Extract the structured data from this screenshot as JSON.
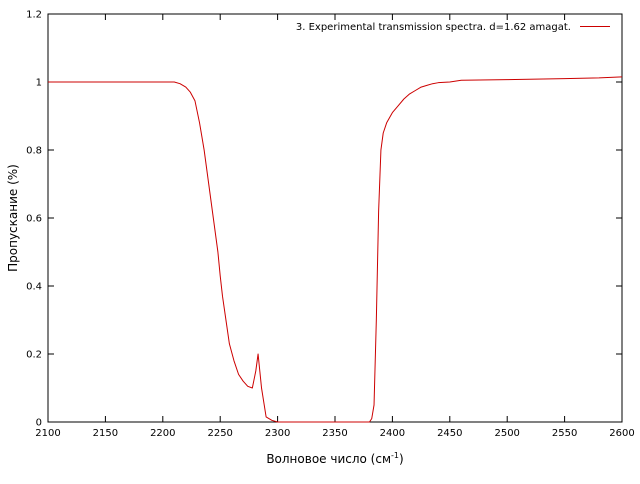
{
  "chart_data": {
    "type": "line",
    "title": "",
    "xlabel": "Волновое число (см",
    "xlabel_sup": "-1",
    "xlabel_suffix": ")",
    "ylabel": "Пропускание (%)",
    "xlim": [
      2100,
      2600
    ],
    "ylim": [
      0,
      1.2
    ],
    "xticks": [
      "2100",
      "2150",
      "2200",
      "2250",
      "2300",
      "2350",
      "2400",
      "2450",
      "2500",
      "2550",
      "2600"
    ],
    "yticks": [
      "0",
      "0.2",
      "0.4",
      "0.6",
      "0.8",
      "1",
      "1.2"
    ],
    "grid": false,
    "legend": "top-right",
    "line_color": "#cc0000",
    "series": [
      {
        "name": "3. Experimental transmission spectra. d=1.62 amagat.",
        "x": [
          2100,
          2150,
          2200,
          2210,
          2215,
          2220,
          2224,
          2228,
          2232,
          2236,
          2240,
          2244,
          2248,
          2250,
          2252,
          2255,
          2258,
          2262,
          2266,
          2270,
          2274,
          2278,
          2281,
          2283,
          2286,
          2290,
          2295,
          2300,
          2340,
          2380,
          2382,
          2384,
          2386,
          2388,
          2390,
          2392,
          2395,
          2400,
          2405,
          2410,
          2415,
          2420,
          2425,
          2430,
          2435,
          2440,
          2450,
          2460,
          2500,
          2550,
          2580,
          2600
        ],
        "y": [
          1.0,
          1.0,
          1.0,
          1.0,
          0.995,
          0.985,
          0.97,
          0.945,
          0.88,
          0.8,
          0.7,
          0.6,
          0.5,
          0.43,
          0.37,
          0.3,
          0.23,
          0.18,
          0.14,
          0.12,
          0.105,
          0.1,
          0.15,
          0.2,
          0.1,
          0.015,
          0.005,
          0.0,
          0.0,
          0.0,
          0.01,
          0.05,
          0.3,
          0.62,
          0.8,
          0.85,
          0.88,
          0.91,
          0.93,
          0.95,
          0.965,
          0.975,
          0.985,
          0.99,
          0.995,
          0.998,
          1.0,
          1.005,
          1.007,
          1.01,
          1.012,
          1.015
        ]
      }
    ]
  }
}
